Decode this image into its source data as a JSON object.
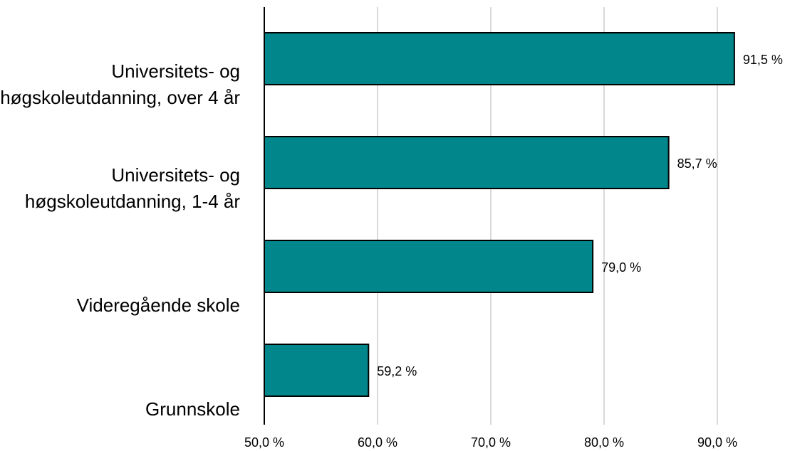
{
  "chart_data": {
    "type": "bar",
    "orientation": "horizontal",
    "title": "",
    "xlabel": "",
    "ylabel": "",
    "categories": [
      [
        "Universitets- og",
        "høgskoleutdanning, over 4 år"
      ],
      [
        "Universitets- og",
        "høgskoleutdanning, 1-4 år"
      ],
      [
        "Videregående skole"
      ],
      [
        "Grunnskole"
      ]
    ],
    "values": [
      91.5,
      85.7,
      79.0,
      59.2
    ],
    "value_labels": [
      "91,5 %",
      "85,7 %",
      "79,0 %",
      "59,2 %"
    ],
    "xlim": [
      50,
      95
    ],
    "x_ticks": [
      50,
      60,
      70,
      80,
      90
    ],
    "x_tick_labels": [
      "50,0 %",
      "60,0 %",
      "70,0 %",
      "80,0 %",
      "90,0 %"
    ],
    "grid": "vertical",
    "legend": "none",
    "bar_color": "#00868b",
    "bar_edge_color": "#000000",
    "grid_color": "#d9d9d9"
  }
}
